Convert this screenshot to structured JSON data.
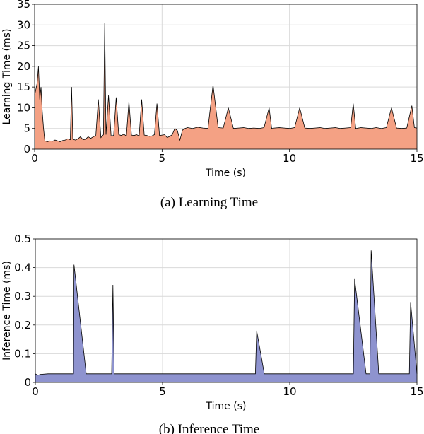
{
  "chart_data": [
    {
      "type": "area",
      "caption": "(a) Learning Time",
      "xlabel": "Time (s)",
      "ylabel": "Learning Time (ms)",
      "xlim": [
        0,
        15
      ],
      "ylim": [
        0,
        35
      ],
      "xticks": [
        0,
        5,
        10,
        15
      ],
      "yticks": [
        0,
        5,
        10,
        15,
        20,
        25,
        30,
        35
      ],
      "grid": true,
      "fill_color": "#f4a184",
      "line_color": "#000000",
      "series": [
        {
          "x": [
            0.0,
            0.1,
            0.15,
            0.2,
            0.25,
            0.3,
            0.35,
            0.4,
            0.5,
            0.6,
            0.7,
            0.8,
            0.9,
            1.0,
            1.1,
            1.2,
            1.3,
            1.4,
            1.45,
            1.5,
            1.6,
            1.7,
            1.8,
            1.9,
            2.0,
            2.1,
            2.2,
            2.3,
            2.4,
            2.5,
            2.6,
            2.7,
            2.75,
            2.8,
            2.9,
            3.0,
            3.1,
            3.2,
            3.3,
            3.4,
            3.5,
            3.6,
            3.7,
            3.8,
            3.9,
            4.0,
            4.1,
            4.2,
            4.3,
            4.4,
            4.5,
            4.6,
            4.7,
            4.8,
            4.9,
            5.0,
            5.1,
            5.2,
            5.3,
            5.4,
            5.5,
            5.6,
            5.7,
            5.8,
            5.9,
            6.0,
            6.2,
            6.4,
            6.6,
            6.8,
            7.0,
            7.2,
            7.4,
            7.6,
            7.8,
            8.0,
            8.2,
            8.4,
            8.6,
            8.8,
            9.0,
            9.2,
            9.3,
            9.4,
            9.6,
            9.8,
            10.0,
            10.2,
            10.4,
            10.6,
            10.8,
            11.0,
            11.2,
            11.4,
            11.6,
            11.8,
            12.0,
            12.2,
            12.4,
            12.5,
            12.6,
            12.8,
            13.0,
            13.2,
            13.4,
            13.6,
            13.8,
            14.0,
            14.2,
            14.4,
            14.6,
            14.8,
            14.9,
            15.0
          ],
          "y": [
            13,
            16,
            20,
            12,
            15,
            9,
            5,
            2,
            1.8,
            2,
            1.9,
            2.2,
            2,
            1.8,
            2.1,
            2.2,
            2.5,
            2.3,
            15,
            2.4,
            2.2,
            2.5,
            3,
            2.3,
            2.4,
            3,
            2.6,
            3,
            3.2,
            12,
            2.8,
            3.5,
            30.5,
            3.5,
            13,
            3.2,
            3.3,
            12.5,
            3.5,
            3.3,
            3.6,
            3.2,
            11.5,
            3.4,
            3.3,
            3.5,
            3.2,
            12,
            3.4,
            3.3,
            3.1,
            3.2,
            3.5,
            11,
            3.3,
            3.4,
            3.5,
            2.8,
            3.1,
            3.5,
            5,
            4.5,
            2.2,
            4.6,
            5,
            5.2,
            5,
            5.3,
            5.1,
            5,
            15.5,
            5.2,
            5.1,
            10,
            5,
            5.1,
            5.2,
            5,
            5.1,
            5,
            5.2,
            10,
            5,
            5.1,
            5.2,
            5.1,
            5,
            5.2,
            10,
            5.1,
            5,
            5.1,
            5.2,
            5,
            5.1,
            5.2,
            5,
            5.1,
            5.2,
            11,
            5,
            5.2,
            5.1,
            5,
            5.2,
            5,
            5.2,
            10,
            5.1,
            5,
            5.1,
            10.5,
            5.2,
            5.1
          ]
        }
      ]
    },
    {
      "type": "area",
      "caption": "(b) Inference Time",
      "xlabel": "Time (s)",
      "ylabel": "Inference Time (ms)",
      "xlim": [
        0,
        15
      ],
      "ylim": [
        0,
        0.5
      ],
      "xticks": [
        0,
        5,
        10,
        15
      ],
      "yticks": [
        0,
        0.1,
        0.2,
        0.3,
        0.4,
        0.5
      ],
      "grid": true,
      "fill_color": "#8e93cf",
      "line_color": "#000000",
      "series": [
        {
          "x": [
            0.0,
            0.1,
            0.2,
            0.5,
            1.0,
            1.5,
            1.52,
            2.0,
            2.5,
            3.0,
            3.05,
            3.1,
            3.5,
            4.0,
            4.5,
            5.0,
            5.5,
            6.0,
            6.5,
            7.0,
            7.5,
            8.0,
            8.5,
            8.65,
            8.7,
            9.0,
            9.5,
            10.0,
            10.5,
            11.0,
            11.5,
            12.0,
            12.5,
            12.55,
            13.0,
            13.15,
            13.2,
            13.5,
            14.0,
            14.5,
            14.7,
            14.75,
            15.0
          ],
          "y": [
            0.03,
            0.025,
            0.028,
            0.03,
            0.03,
            0.03,
            0.41,
            0.03,
            0.03,
            0.03,
            0.34,
            0.03,
            0.03,
            0.03,
            0.03,
            0.03,
            0.03,
            0.03,
            0.03,
            0.03,
            0.03,
            0.03,
            0.03,
            0.03,
            0.18,
            0.03,
            0.03,
            0.03,
            0.03,
            0.03,
            0.03,
            0.03,
            0.03,
            0.36,
            0.03,
            0.03,
            0.46,
            0.03,
            0.03,
            0.03,
            0.03,
            0.28,
            0.03
          ]
        }
      ]
    }
  ]
}
